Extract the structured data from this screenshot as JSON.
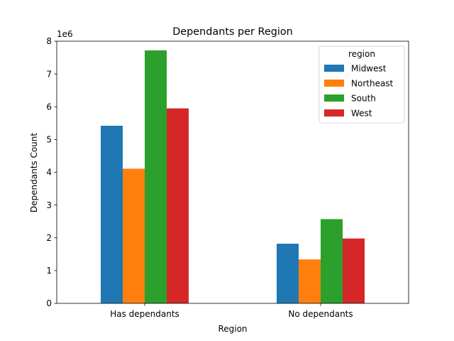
{
  "chart_data": {
    "type": "bar",
    "title": "Dependants per Region",
    "xlabel": "Region",
    "ylabel": "Dependants Count",
    "y_offset_text": "1e6",
    "ylim": [
      0,
      8.0
    ],
    "y_ticks": [
      "0",
      "1",
      "2",
      "3",
      "4",
      "5",
      "6",
      "7",
      "8"
    ],
    "categories": [
      "Has dependants",
      "No dependants"
    ],
    "legend": {
      "title": "region",
      "placement": "upper-right"
    },
    "series": [
      {
        "name": "Midwest",
        "color": "#1f77b4",
        "values": [
          5.42,
          1.82
        ]
      },
      {
        "name": "Northeast",
        "color": "#ff7f0e",
        "values": [
          4.11,
          1.34
        ]
      },
      {
        "name": "South",
        "color": "#2ca02c",
        "values": [
          7.72,
          2.57
        ]
      },
      {
        "name": "West",
        "color": "#d62728",
        "values": [
          5.95,
          1.98
        ]
      }
    ]
  }
}
